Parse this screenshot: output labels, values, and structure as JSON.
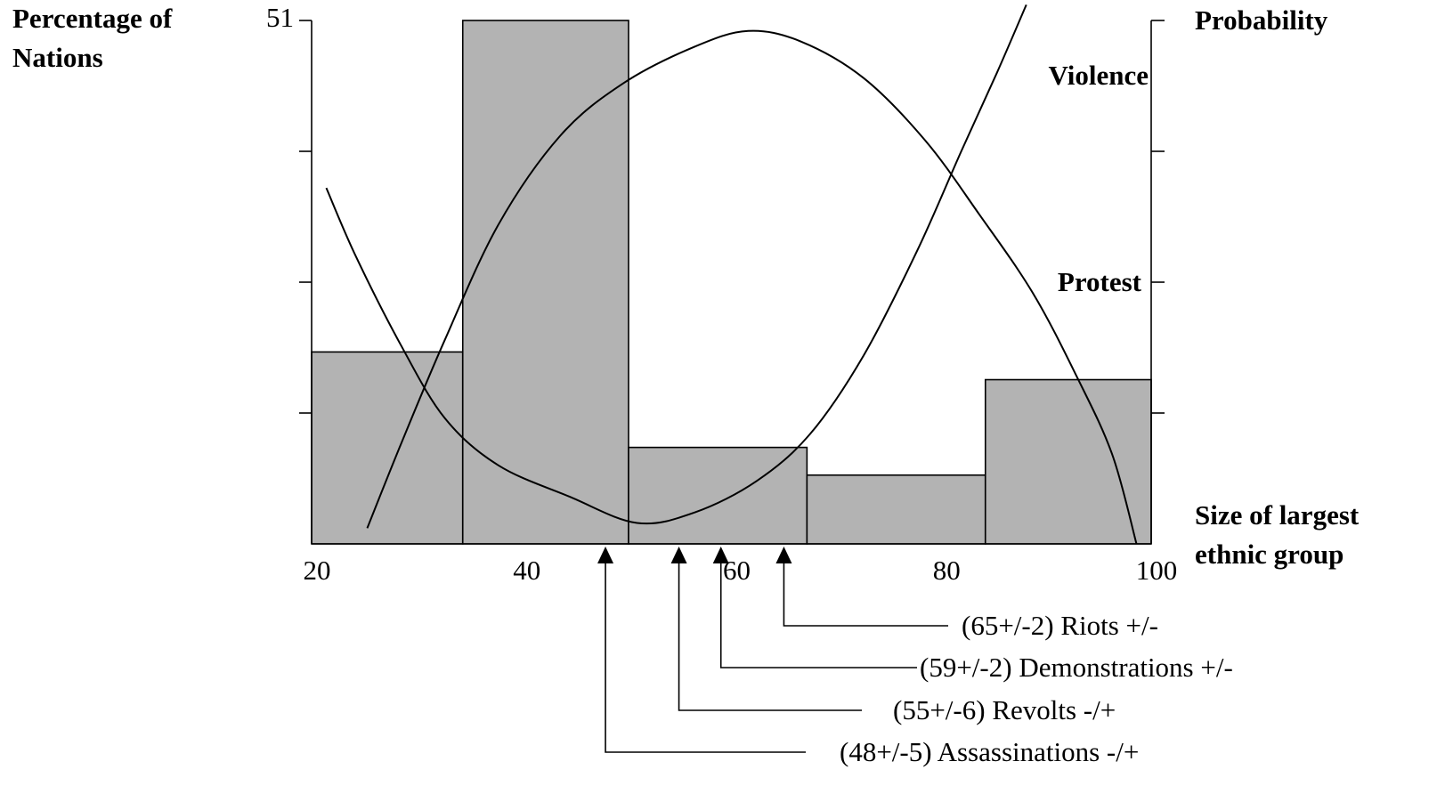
{
  "chart_data": {
    "type": "histogram",
    "ylabel": [
      "Percentage of",
      "Nations"
    ],
    "y2label": "Probability",
    "xlabel": [
      "Size of largest",
      "ethnic group"
    ],
    "bins": [
      20,
      34.4,
      50.2,
      67.2,
      84.2,
      100
    ],
    "values": [
      18.7,
      51,
      9.4,
      6.7,
      16.0
    ],
    "color": "#b3b3b3",
    "xlim": [
      20,
      100
    ],
    "xticks": [
      20,
      40,
      60,
      80,
      100
    ],
    "ylim": [
      0,
      51
    ],
    "yticks": [
      51
    ],
    "yminor_ticks": [
      12.75,
      25.5,
      38.25
    ],
    "y2lim": [
      0,
      1
    ],
    "y2minor_ticks": [
      0.25,
      0.5,
      0.75,
      1
    ],
    "curves": [
      {
        "name": "Violence",
        "axis": "y2",
        "x": [
          25.3,
          28.5,
          32.7,
          37.8,
          43.7,
          49.7,
          56.5,
          61.6,
          66.6,
          72.6,
          78.5,
          83.6,
          88.7,
          92.9,
          96.3,
          98.6
        ],
        "values": [
          0.03,
          0.19,
          0.39,
          0.61,
          0.78,
          0.88,
          0.95,
          0.98,
          0.96,
          0.89,
          0.77,
          0.63,
          0.48,
          0.32,
          0.17,
          0
        ]
      },
      {
        "name": "Protest",
        "axis": "y2",
        "x": [
          21.4,
          24.2,
          28.5,
          32.7,
          37.8,
          44.6,
          51.0,
          56.5,
          62.4,
          67.5,
          72.6,
          77.7,
          81.9,
          85.3,
          88.1
        ],
        "values": [
          0.68,
          0.55,
          0.38,
          0.24,
          0.15,
          0.09,
          0.04,
          0.06,
          0.12,
          0.21,
          0.36,
          0.56,
          0.75,
          0.9,
          1.03
        ]
      }
    ],
    "annotations": [
      {
        "text": "(65+/-2) Riots +/-",
        "x": 65
      },
      {
        "text": "(59+/-2) Demonstrations +/-",
        "x": 59
      },
      {
        "text": "(55+/-6) Revolts -/+",
        "x": 55
      },
      {
        "text": "(48+/-5) Assassinations -/+",
        "x": 48
      }
    ]
  }
}
